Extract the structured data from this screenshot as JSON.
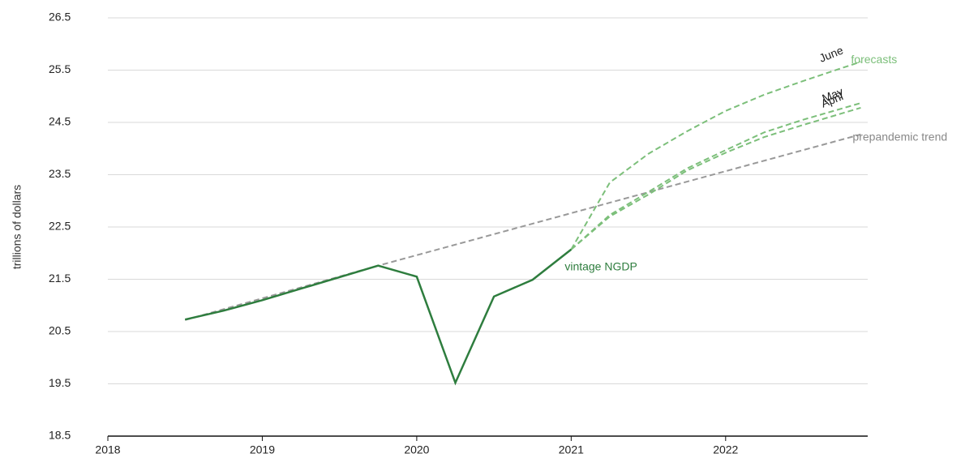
{
  "chart_data": {
    "type": "line",
    "y_axis_label": "trillions of dollars",
    "annotations": [
      "forecasts"
    ],
    "xlim": [
      2018,
      2022.92
    ],
    "xticks": [
      2018,
      2019,
      2020,
      2021,
      2022
    ],
    "ylim": [
      18.5,
      26.5
    ],
    "yticks": [
      18.5,
      19.5,
      20.5,
      21.5,
      22.5,
      23.5,
      24.5,
      25.5,
      26.5
    ],
    "grid": true,
    "series": [
      {
        "name": "prepandemic trend",
        "color": "#999999",
        "dashed": true,
        "x": [
          2018.5,
          2019.75,
          2022.875
        ],
        "values": [
          20.72,
          21.76,
          24.27
        ]
      },
      {
        "name": "April",
        "color": "#7cbf7a",
        "dashed": true,
        "x": [
          2021,
          2021.25,
          2021.5,
          2021.75,
          2022,
          2022.25,
          2022.5,
          2022.875
        ],
        "values": [
          22.07,
          22.7,
          23.12,
          23.58,
          23.92,
          24.22,
          24.45,
          24.78
        ]
      },
      {
        "name": "May",
        "color": "#7cbf7a",
        "dashed": true,
        "x": [
          2021,
          2021.25,
          2021.5,
          2021.75,
          2022,
          2022.25,
          2022.5,
          2022.875
        ],
        "values": [
          22.07,
          22.73,
          23.17,
          23.62,
          23.97,
          24.31,
          24.55,
          24.87
        ]
      },
      {
        "name": "June",
        "color": "#7cbf7a",
        "dashed": true,
        "x": [
          2021,
          2021.25,
          2021.5,
          2021.75,
          2022,
          2022.25,
          2022.5,
          2022.875
        ],
        "values": [
          22.07,
          23.35,
          23.9,
          24.33,
          24.72,
          25.03,
          25.29,
          25.66
        ]
      },
      {
        "name": "vintage NGDP",
        "color": "#2e7d3e",
        "dashed": false,
        "x": [
          2018.5,
          2018.75,
          2019,
          2019.25,
          2019.5,
          2019.75,
          2020,
          2020.25,
          2020.5,
          2020.75,
          2021
        ],
        "values": [
          20.73,
          20.9,
          21.1,
          21.32,
          21.54,
          21.76,
          21.55,
          19.52,
          21.17,
          21.49,
          22.07
        ]
      }
    ]
  }
}
